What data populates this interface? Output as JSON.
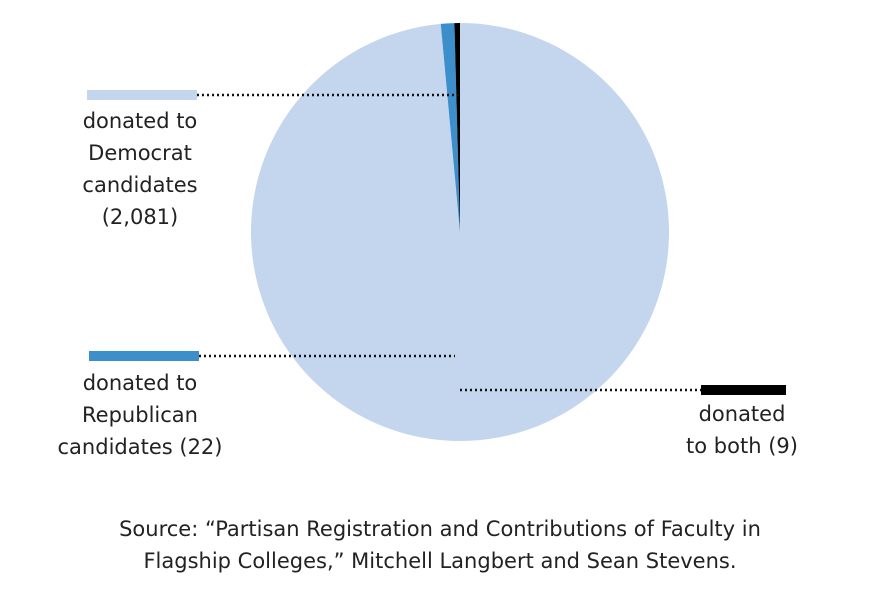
{
  "chart_data": {
    "type": "pie",
    "categories": [
      "donated to Democrat candidates (2,081)",
      "donated to Republican candidates (22)",
      "donated to both (9)"
    ],
    "values": [
      2081,
      22,
      9
    ],
    "colors": [
      "#c3d6ee",
      "#3d8fcb",
      "#000000"
    ],
    "legend": [
      {
        "lines": [
          "donated to",
          "Democrat",
          "candidates",
          "(2,081)"
        ]
      },
      {
        "lines": [
          "donated to",
          "Republican",
          "candidates (22)"
        ]
      },
      {
        "lines": [
          "donated",
          "to both (9)"
        ]
      }
    ],
    "legend_placement": "left and right, connected by dotted leader lines",
    "source_lines": [
      "Source: “Partisan Registration and Contributions of Faculty in",
      "Flagship Colleges,” Mitchell Langbert and Sean Stevens."
    ]
  }
}
